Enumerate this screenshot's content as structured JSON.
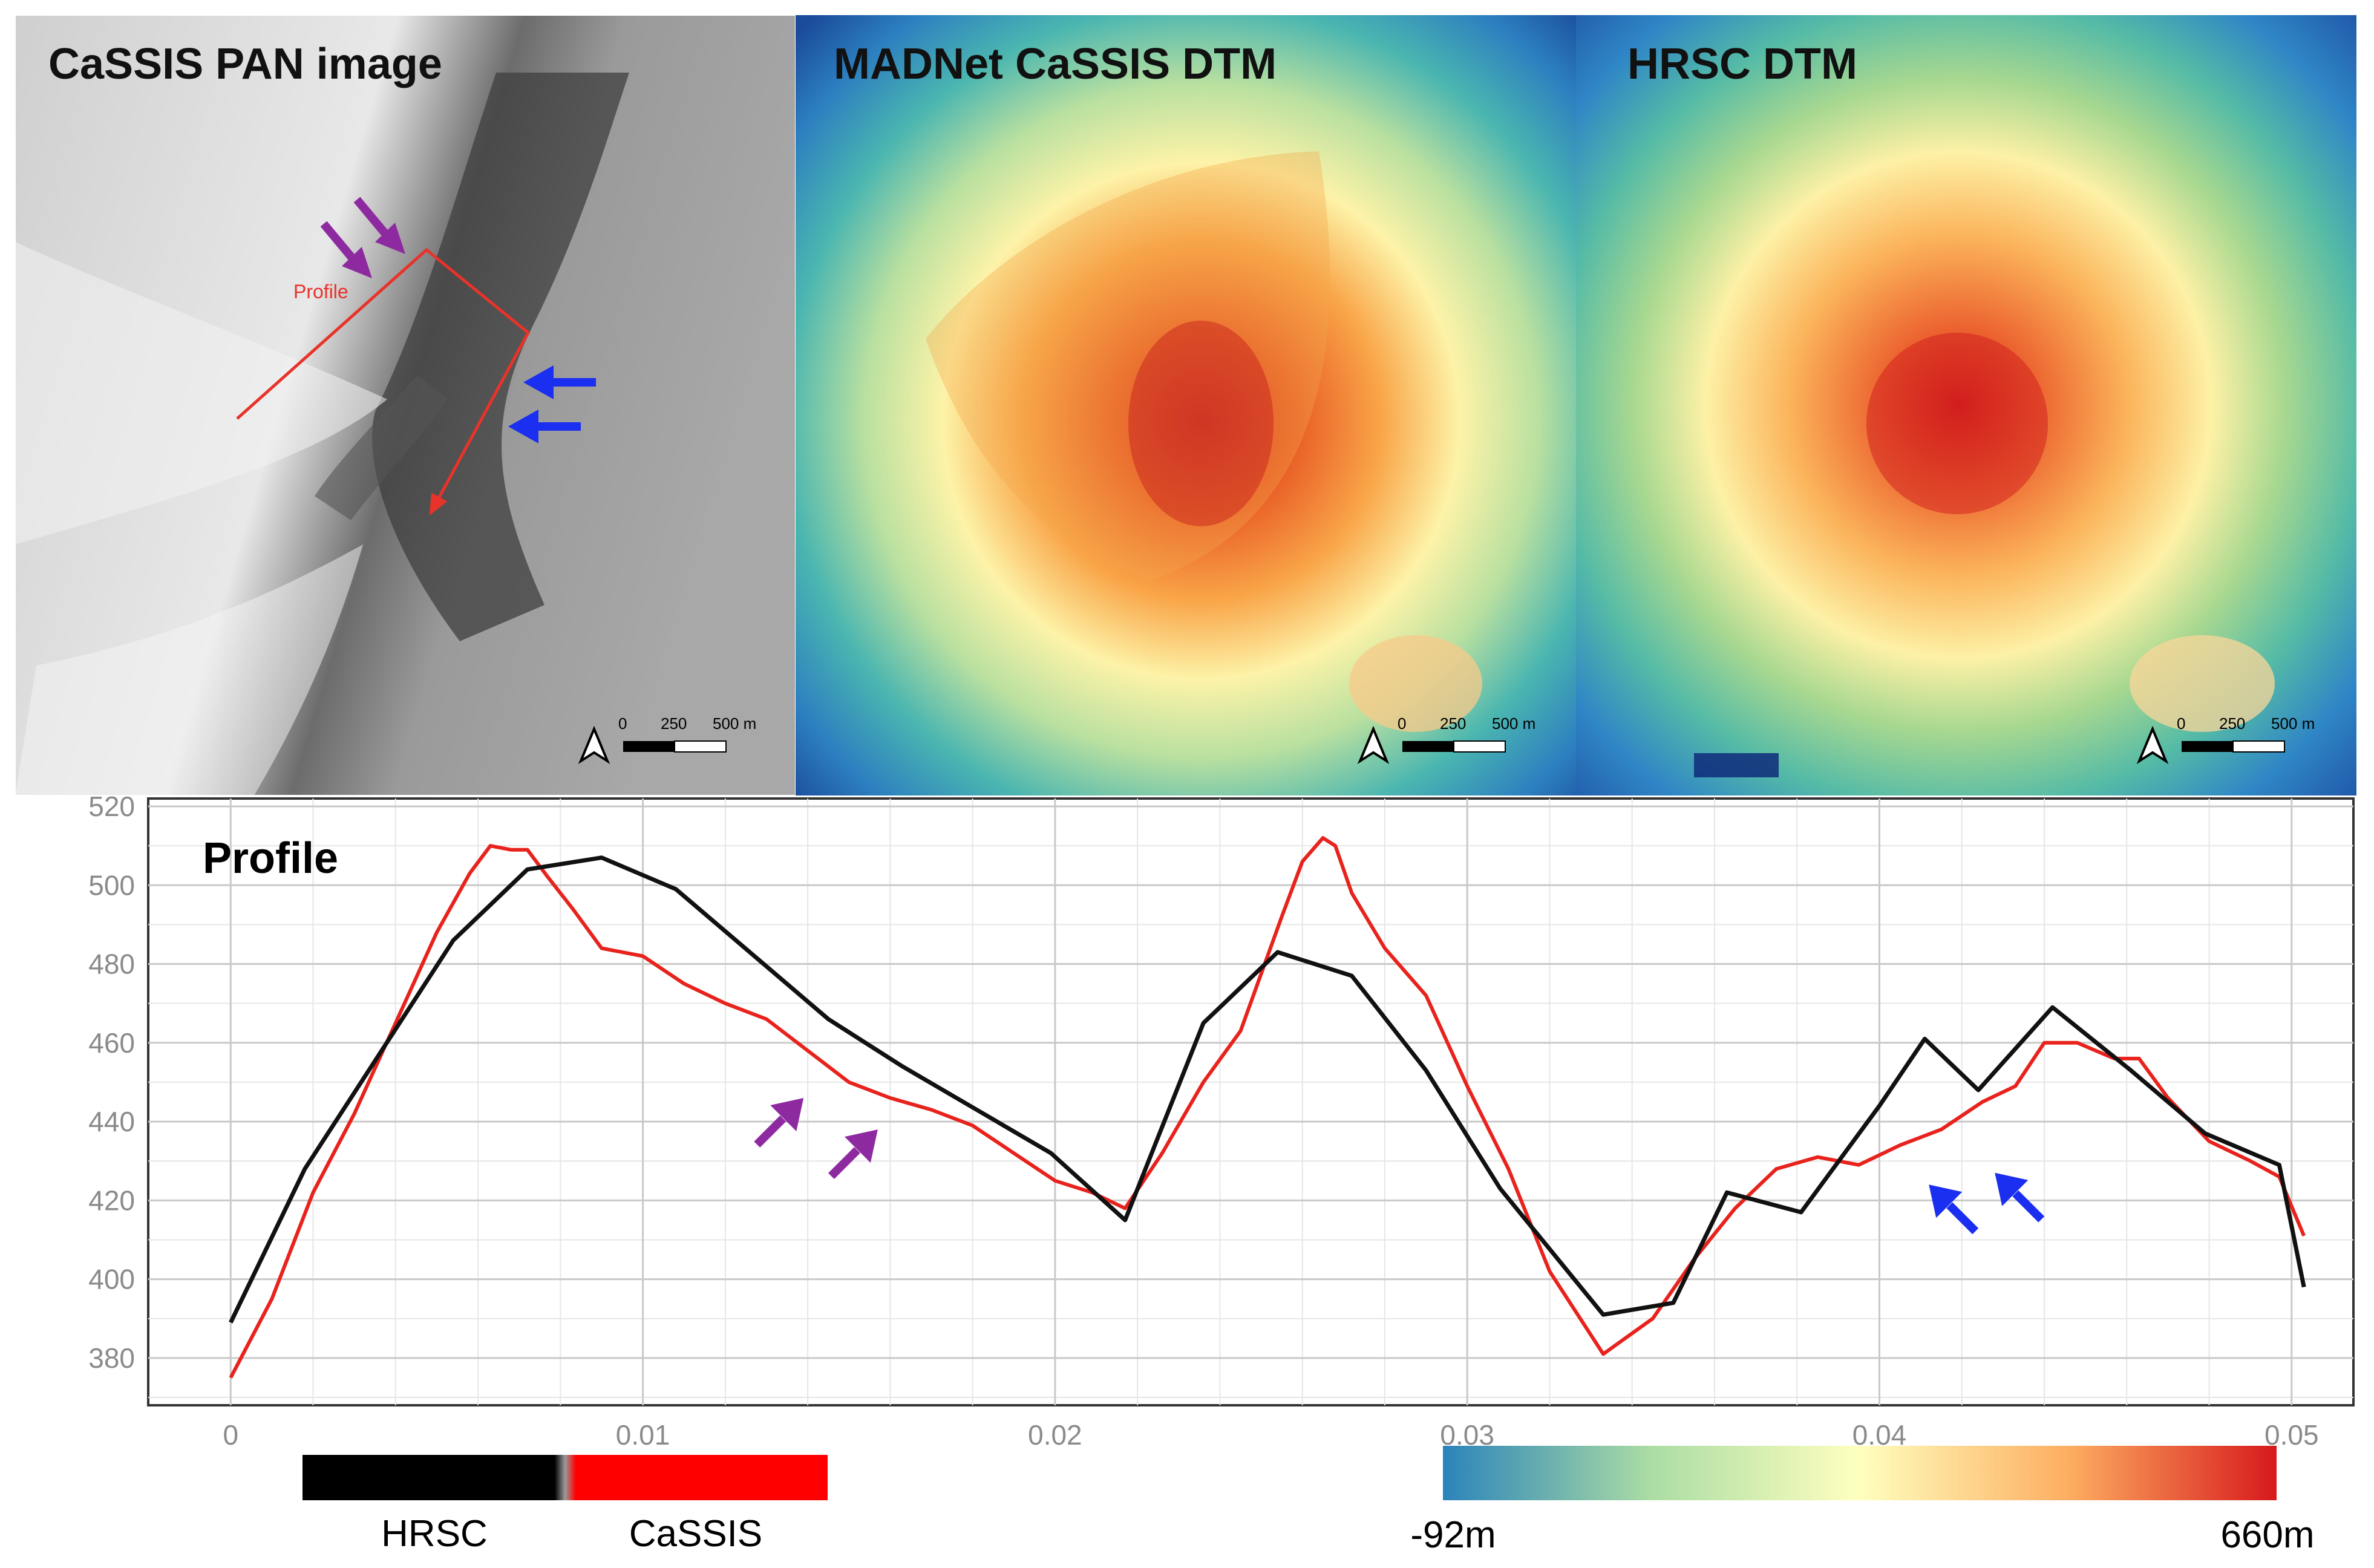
{
  "panels": [
    {
      "title": "CaSSIS PAN image",
      "scale": {
        "t0": "0",
        "t1": "250",
        "t2": "500 m"
      }
    },
    {
      "title": "MADNet CaSSIS DTM",
      "scale": {
        "t0": "0",
        "t1": "250",
        "t2": "500 m"
      }
    },
    {
      "title": "HRSC DTM",
      "scale": {
        "t0": "0",
        "t1": "250",
        "t2": "500 m"
      }
    }
  ],
  "pan_annotation": {
    "profile_label": "Profile"
  },
  "colors": {
    "hrsc": "#111111",
    "cassis": "#e8221c",
    "purple_arrow": "#8e2aa0",
    "blue_arrow": "#1a2ff0",
    "profile_line": "#e8332a"
  },
  "chart_data": {
    "type": "line",
    "title": "Profile",
    "xlabel": "",
    "ylabel": "",
    "xlim": [
      -0.002,
      0.0515
    ],
    "ylim": [
      368,
      522
    ],
    "xticks": [
      0,
      0.01,
      0.02,
      0.03,
      0.04,
      0.05
    ],
    "xtick_labels": [
      "0",
      "0.01",
      "0.02",
      "0.03",
      "0.04",
      "0.05"
    ],
    "yticks": [
      380,
      400,
      420,
      440,
      460,
      480,
      500,
      520
    ],
    "ytick_labels": [
      "380",
      "400",
      "420",
      "440",
      "460",
      "480",
      "500",
      "520"
    ],
    "grid": true,
    "series": [
      {
        "name": "HRSC",
        "x": [
          0,
          0.0018,
          0.0054,
          0.0072,
          0.009,
          0.0108,
          0.0145,
          0.0163,
          0.0181,
          0.0199,
          0.0217,
          0.0236,
          0.0254,
          0.0272,
          0.029,
          0.0308,
          0.0333,
          0.035,
          0.0363,
          0.0381,
          0.04,
          0.0411,
          0.0424,
          0.0442,
          0.0461,
          0.0479,
          0.0497,
          0.0503
        ],
        "values": [
          389,
          428,
          486,
          504,
          507,
          499,
          466,
          454,
          443,
          432,
          415,
          465,
          483,
          477,
          453,
          423,
          391,
          394,
          422,
          417,
          444,
          461,
          448,
          469,
          453,
          437,
          429,
          398
        ]
      },
      {
        "name": "CaSSIS",
        "x": [
          0,
          0.001,
          0.002,
          0.003,
          0.004,
          0.005,
          0.0058,
          0.0063,
          0.0068,
          0.0072,
          0.0077,
          0.0083,
          0.009,
          0.01,
          0.011,
          0.012,
          0.013,
          0.014,
          0.015,
          0.016,
          0.017,
          0.018,
          0.019,
          0.02,
          0.0209,
          0.0217,
          0.0226,
          0.0236,
          0.0245,
          0.0255,
          0.026,
          0.0265,
          0.0268,
          0.0272,
          0.028,
          0.029,
          0.03,
          0.031,
          0.032,
          0.0333,
          0.0345,
          0.0355,
          0.0365,
          0.0375,
          0.0385,
          0.0395,
          0.0405,
          0.0415,
          0.0425,
          0.0433,
          0.044,
          0.0448,
          0.0457,
          0.0463,
          0.047,
          0.048,
          0.049,
          0.0497,
          0.0503
        ],
        "values": [
          375,
          395,
          422,
          442,
          465,
          488,
          503,
          510,
          509,
          509,
          502,
          494,
          484,
          482,
          475,
          470,
          466,
          458,
          450,
          446,
          443,
          439,
          432,
          425,
          422,
          418,
          432,
          450,
          463,
          492,
          506,
          512,
          510,
          498,
          484,
          472,
          449,
          428,
          402,
          381,
          390,
          405,
          418,
          428,
          431,
          429,
          434,
          438,
          445,
          449,
          460,
          460,
          456,
          456,
          446,
          435,
          430,
          426,
          411
        ]
      }
    ],
    "annotations": [
      {
        "type": "arrow",
        "color": "purple",
        "at_x": 0.0139,
        "at_y": 446
      },
      {
        "type": "arrow",
        "color": "purple",
        "at_x": 0.0157,
        "at_y": 438
      },
      {
        "type": "arrow",
        "color": "blue",
        "at_x": 0.0412,
        "at_y": 424
      },
      {
        "type": "arrow",
        "color": "blue",
        "at_x": 0.0428,
        "at_y": 427
      }
    ]
  },
  "legend": {
    "hrsc_label": "HRSC",
    "cassis_label": "CaSSIS",
    "colorbar_min": "-92m",
    "colorbar_max": "660m"
  }
}
